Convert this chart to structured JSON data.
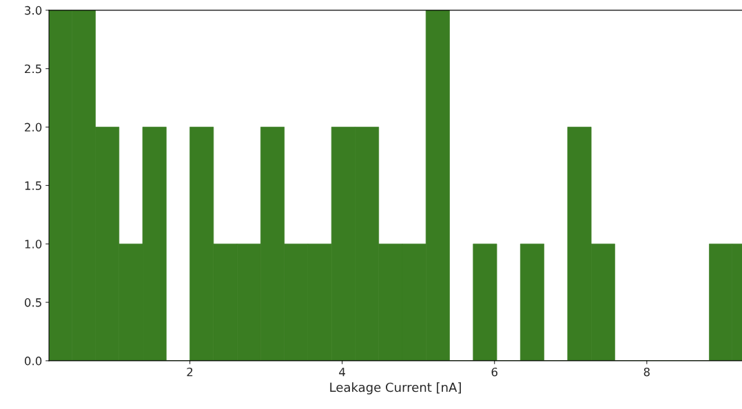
{
  "chart_data": {
    "type": "histogram",
    "xlabel": "Leakage Current [nA]",
    "bins": [
      0.15,
      0.45,
      0.76,
      1.07,
      1.38,
      1.69,
      2.0,
      2.31,
      2.62,
      2.93,
      3.24,
      3.55,
      3.86,
      4.17,
      4.48,
      4.79,
      5.1,
      5.41,
      5.72,
      6.03,
      6.34,
      6.65,
      6.96,
      7.27,
      7.58,
      8.82,
      9.12,
      9.43
    ],
    "values": [
      3,
      3,
      2,
      1,
      2,
      0,
      2,
      1,
      1,
      2,
      1,
      1,
      2,
      2,
      1,
      1,
      3,
      0,
      1,
      0,
      1,
      0,
      2,
      1,
      0,
      1,
      1
    ],
    "color": "#3a7d22",
    "xlim": [
      0.15,
      9.25
    ],
    "ylim": [
      0,
      3
    ],
    "xticks": [
      2,
      4,
      6,
      8
    ],
    "yticks": [
      {
        "value": 0,
        "label": "0.0"
      },
      {
        "value": 0.5,
        "label": "0.5"
      },
      {
        "value": 1,
        "label": "1.0"
      },
      {
        "value": 1.5,
        "label": "1.5"
      },
      {
        "value": 2,
        "label": "2.0"
      },
      {
        "value": 2.5,
        "label": "2.5"
      },
      {
        "value": 3,
        "label": "3.0"
      }
    ],
    "grid": false
  }
}
